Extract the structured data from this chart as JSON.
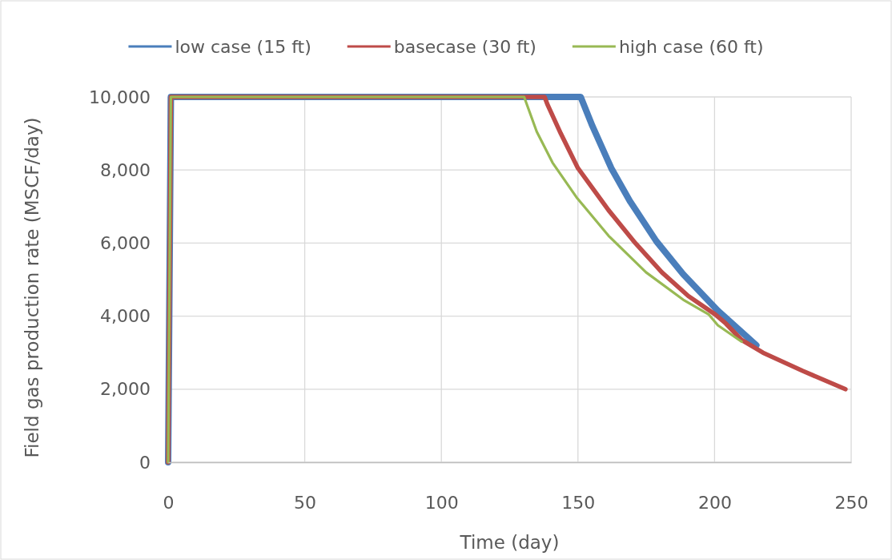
{
  "chart_data": {
    "type": "line",
    "xlabel": "Time (day)",
    "ylabel": "Field gas production rate (MSCF/day)",
    "xlim": [
      0,
      250
    ],
    "xticks": [
      0,
      50,
      100,
      150,
      200,
      250
    ],
    "ylim": [
      0,
      10000
    ],
    "yticks": [
      {
        "value": 0,
        "label": "0"
      },
      {
        "value": 2000,
        "label": "2,000"
      },
      {
        "value": 4000,
        "label": "4,000"
      },
      {
        "value": 6000,
        "label": "6,000"
      },
      {
        "value": 8000,
        "label": "8,000"
      },
      {
        "value": 10000,
        "label": "10,000"
      }
    ],
    "grid": true,
    "legend": "top",
    "marker": "none",
    "line_style": "solid",
    "series": [
      {
        "name": "low case (15 ft)",
        "color": "#4a7ebb",
        "x": [
          0,
          1,
          151,
          155.3,
          162.2,
          169,
          178.7,
          188.5,
          201.2,
          215.3
        ],
        "values": [
          0,
          10000,
          10000,
          9200,
          8050,
          7150,
          6050,
          5150,
          4150,
          3200
        ]
      },
      {
        "name": "basecase (30 ft)",
        "color": "#be4b48",
        "x": [
          0,
          1,
          137.8,
          138.8,
          143.7,
          150,
          161.2,
          171,
          180.7,
          190.4,
          200.2,
          204.1,
          209.9,
          217.7,
          232.3,
          247.9
        ],
        "values": [
          0,
          10000,
          10000,
          9800,
          9000,
          8050,
          6900,
          6000,
          5200,
          4550,
          4050,
          3800,
          3350,
          3000,
          2500,
          2000
        ]
      },
      {
        "name": "high case (60 ft)",
        "color": "#98b954",
        "x": [
          0,
          1,
          130.3,
          134.9,
          140.7,
          149.5,
          161.2,
          174.9,
          188.5,
          197.8,
          201.2,
          209.9
        ],
        "values": [
          0,
          10000,
          10000,
          9050,
          8200,
          7250,
          6200,
          5200,
          4450,
          4050,
          3750,
          3300
        ]
      }
    ]
  }
}
